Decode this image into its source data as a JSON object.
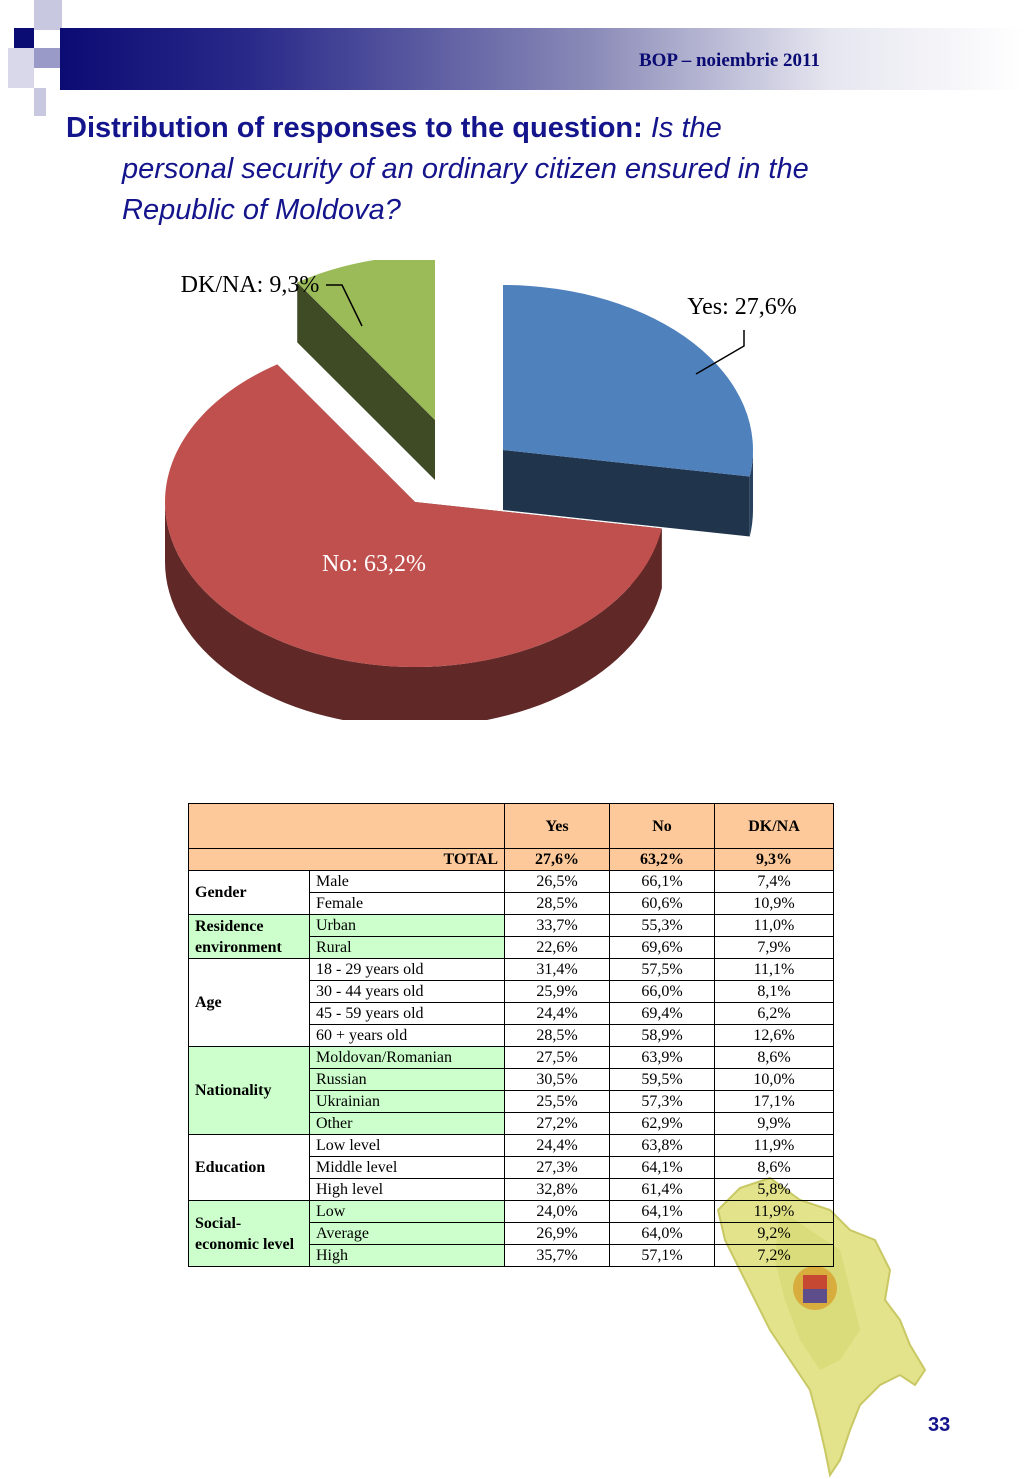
{
  "header": {
    "source": "BOP  – noiembrie 2011"
  },
  "title": {
    "lead": "Distribution of responses to the question:",
    "question_part1": "Is the",
    "question_part2": "personal security of an ordinary citizen ensured in the",
    "question_part3": "Republic of Moldova?"
  },
  "chart_data": {
    "type": "pie",
    "slices": [
      {
        "label": "Yes",
        "value": 27.6,
        "text": "Yes: 27,6%",
        "color": "#4f81bd"
      },
      {
        "label": "No",
        "value": 63.2,
        "text": "No: 63,2%",
        "color": "#c0504d"
      },
      {
        "label": "DK/NA",
        "value": 9.3,
        "text": "DK/NA: 9,3%",
        "color": "#9bbb59"
      }
    ]
  },
  "table": {
    "headers": [
      "Yes",
      "No",
      "DK/NA"
    ],
    "total": {
      "label": "TOTAL",
      "values": [
        "27,6%",
        "63,2%",
        "9,3%"
      ]
    },
    "groups": [
      {
        "name": "Gender",
        "green": false,
        "rows": [
          {
            "label": "Male",
            "values": [
              "26,5%",
              "66,1%",
              "7,4%"
            ]
          },
          {
            "label": "Female",
            "values": [
              "28,5%",
              "60,6%",
              "10,9%"
            ]
          }
        ]
      },
      {
        "name": "Residence environment",
        "green": true,
        "rows": [
          {
            "label": "Urban",
            "values": [
              "33,7%",
              "55,3%",
              "11,0%"
            ]
          },
          {
            "label": "Rural",
            "values": [
              "22,6%",
              "69,6%",
              "7,9%"
            ]
          }
        ]
      },
      {
        "name": "Age",
        "green": false,
        "rows": [
          {
            "label": "18 - 29 years old",
            "values": [
              "31,4%",
              "57,5%",
              "11,1%"
            ]
          },
          {
            "label": "30 - 44 years old",
            "values": [
              "25,9%",
              "66,0%",
              "8,1%"
            ]
          },
          {
            "label": "45 - 59 years old",
            "values": [
              "24,4%",
              "69,4%",
              "6,2%"
            ]
          },
          {
            "label": "60 + years old",
            "values": [
              "28,5%",
              "58,9%",
              "12,6%"
            ]
          }
        ]
      },
      {
        "name": "Nationality",
        "green": true,
        "rows": [
          {
            "label": "Moldovan/Romanian",
            "values": [
              "27,5%",
              "63,9%",
              "8,6%"
            ]
          },
          {
            "label": "Russian",
            "values": [
              "30,5%",
              "59,5%",
              "10,0%"
            ]
          },
          {
            "label": "Ukrainian",
            "values": [
              "25,5%",
              "57,3%",
              "17,1%"
            ]
          },
          {
            "label": "Other",
            "values": [
              "27,2%",
              "62,9%",
              "9,9%"
            ]
          }
        ]
      },
      {
        "name": "Education",
        "green": false,
        "rows": [
          {
            "label": "Low level",
            "values": [
              "24,4%",
              "63,8%",
              "11,9%"
            ]
          },
          {
            "label": "Middle level",
            "values": [
              "27,3%",
              "64,1%",
              "8,6%"
            ]
          },
          {
            "label": "High level",
            "values": [
              "32,8%",
              "61,4%",
              "5,8%"
            ]
          }
        ]
      },
      {
        "name": "Social-economic level",
        "green": true,
        "rows": [
          {
            "label": "Low",
            "values": [
              "24,0%",
              "64,1%",
              "11,9%"
            ]
          },
          {
            "label": "Average",
            "values": [
              "26,9%",
              "64,0%",
              "9,2%"
            ]
          },
          {
            "label": "High",
            "values": [
              "35,7%",
              "57,1%",
              "7,2%"
            ]
          }
        ]
      }
    ]
  },
  "page_number": "33"
}
